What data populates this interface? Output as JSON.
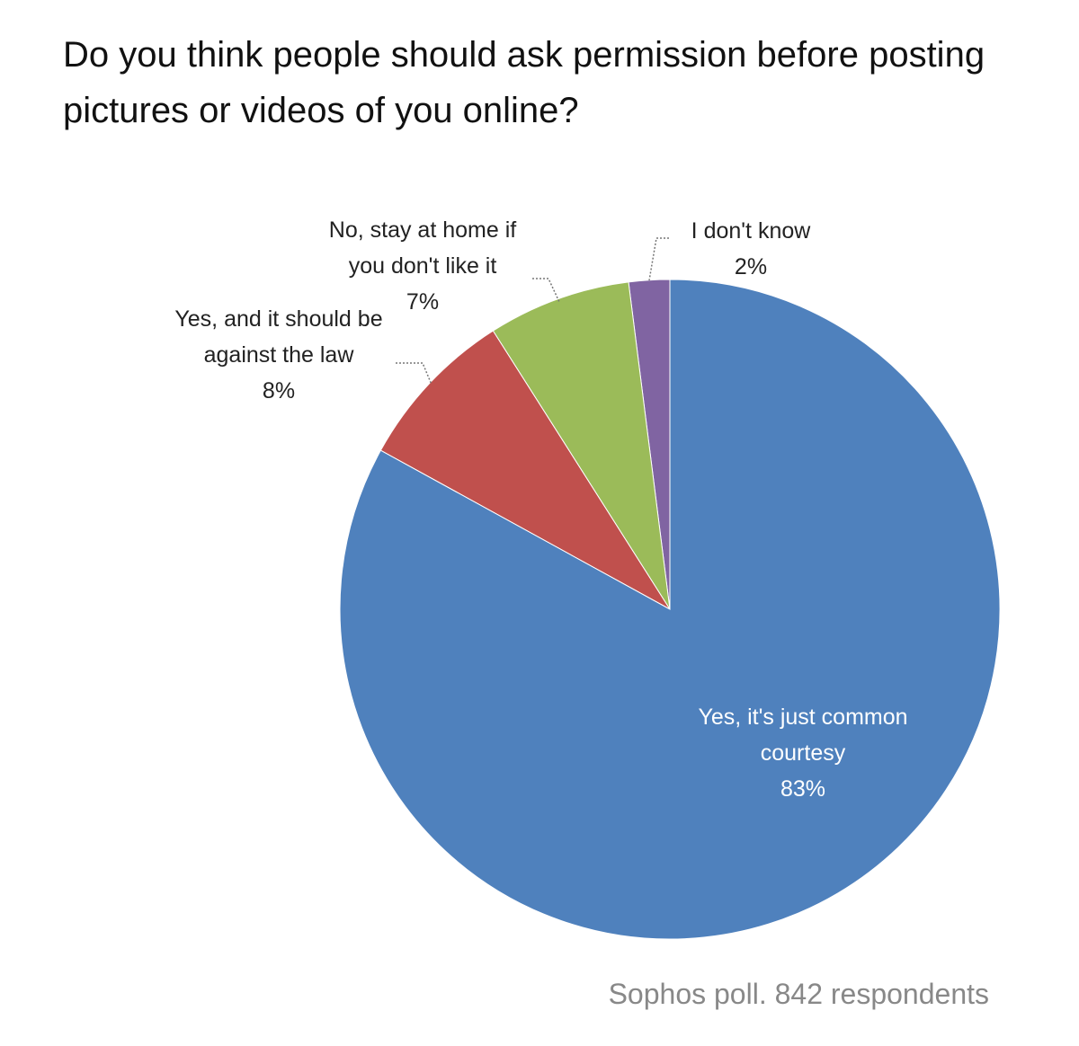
{
  "chart_data": {
    "type": "pie",
    "title": "Do you think people should ask permission before posting pictures or videos of you online?",
    "categories": [
      "Yes, it's just common courtesy",
      "Yes, and it should be against the law",
      "No, stay at home if you don't like it",
      "I don't know"
    ],
    "values": [
      83,
      8,
      7,
      2
    ],
    "value_labels": [
      "83%",
      "8%",
      "7%",
      "2%"
    ],
    "colors": [
      "#4f81bd",
      "#c0504d",
      "#9bbb59",
      "#8064a2"
    ],
    "note": "Sophos poll. 842 respondents"
  }
}
